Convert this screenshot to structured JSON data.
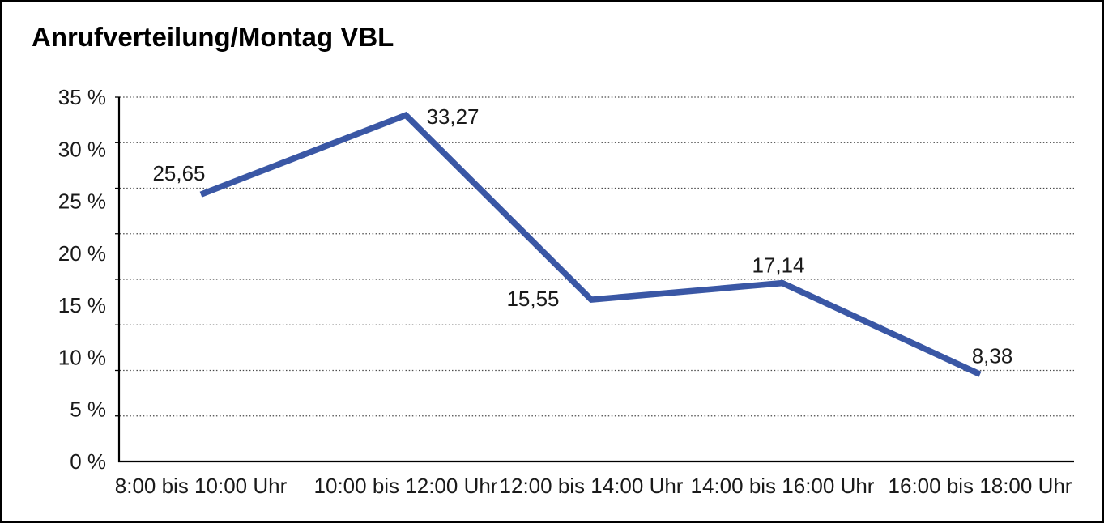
{
  "window": {
    "title": "Anrufverteilung/Montag VBL"
  },
  "chart_data": {
    "type": "line",
    "title": "Anrufverteilung/Montag VBL",
    "categories": [
      "8:00 bis 10:00 Uhr",
      "10:00 bis 12:00 Uhr",
      "12:00 bis 14:00 Uhr",
      "14:00 bis 16:00 Uhr",
      "16:00 bis 18:00 Uhr"
    ],
    "values": [
      25.65,
      33.27,
      15.55,
      17.14,
      8.38
    ],
    "data_labels": [
      "25,65",
      "33,27",
      "15,55",
      "17,14",
      "8,38"
    ],
    "y_tick_labels": [
      "35 %",
      "30 %",
      "25 %",
      "20 %",
      "15 %",
      "10 %",
      "5 %",
      "0 %"
    ],
    "ylim": [
      0,
      35
    ],
    "xlabel": "",
    "ylabel": "",
    "legend": "none",
    "grid": "horizontal-dotted",
    "series_color": "#3a57a5",
    "axis_color": "#000000",
    "gridline_color": "#4a4a4a",
    "label_color": "#1a1a1a"
  }
}
